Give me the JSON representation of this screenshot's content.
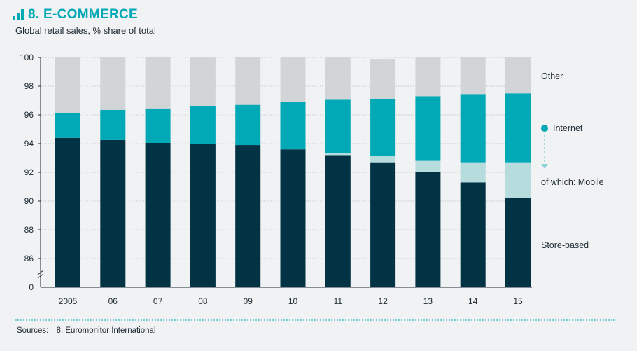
{
  "header": {
    "title": "8. E-COMMERCE",
    "subtitle": "Global retail sales, % share of total"
  },
  "source": {
    "label": "Sources:",
    "text": "8. Euromonitor International"
  },
  "colors": {
    "store": "#023344",
    "mobile": "#b7dcde",
    "internet": "#00a9b5",
    "other": "#d2d5d8"
  },
  "chart_data": {
    "type": "bar",
    "stacked": true,
    "categories": [
      "2005",
      "06",
      "07",
      "08",
      "09",
      "10",
      "11",
      "12",
      "13",
      "14",
      "15"
    ],
    "y_ticks": [
      "0",
      "86",
      "88",
      "90",
      "92",
      "94",
      "96",
      "98",
      "100"
    ],
    "y_axis_break": true,
    "ylim": [
      84,
      100
    ],
    "series": [
      {
        "name": "Store-based",
        "values": [
          94.4,
          94.25,
          94.05,
          94.0,
          93.9,
          93.6,
          93.2,
          92.7,
          92.05,
          91.3,
          90.2
        ]
      },
      {
        "name": "of which: Mobile",
        "values": [
          0,
          0,
          0,
          0,
          0,
          0,
          0.15,
          0.45,
          0.75,
          1.4,
          2.5
        ]
      },
      {
        "name": "Internet",
        "values": [
          1.75,
          2.1,
          2.4,
          2.6,
          2.8,
          3.3,
          3.7,
          3.95,
          4.5,
          4.75,
          4.8
        ]
      },
      {
        "name": "Other",
        "values": [
          3.85,
          3.65,
          3.6,
          3.4,
          3.3,
          3.1,
          2.95,
          2.8,
          2.7,
          2.55,
          2.5
        ]
      }
    ],
    "legend": {
      "placement": "right",
      "items": [
        "Other",
        "Internet",
        "of which: Mobile",
        "Store-based"
      ]
    }
  }
}
